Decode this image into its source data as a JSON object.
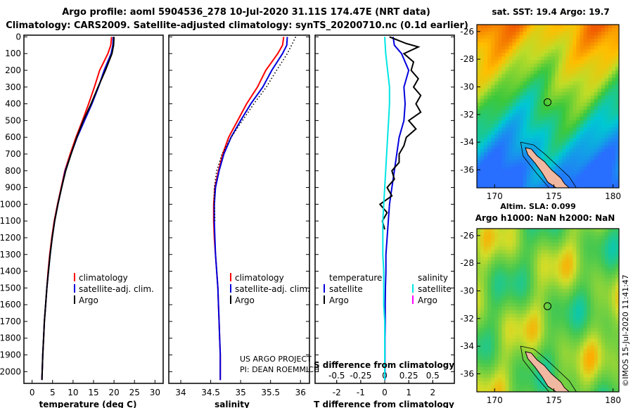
{
  "title": {
    "line1": "Argo profile: aoml 5904536_278 10-Jul-2020 31.11S 174.47E (NRT data)",
    "line2": "Climatology: CARS2009. Satellite-adjusted climatology: synTS_20200710.nc (0.1d earlier)"
  },
  "colors": {
    "climatology": "#ff0000",
    "satellite": "#0000dd",
    "argo": "#000000",
    "sat_salinity": "#00e5e5",
    "argo_salinity": "#ff00ff"
  },
  "chart_data": [
    {
      "type": "line",
      "name": "temperature",
      "xlabel": "temperature (deg C)",
      "ylabel": "",
      "xlim": [
        -2,
        32
      ],
      "ylim": [
        2070,
        -10
      ],
      "xticks": [
        0,
        5,
        10,
        15,
        20,
        25,
        30
      ],
      "yticks": [
        0,
        100,
        200,
        300,
        400,
        500,
        600,
        700,
        800,
        900,
        1000,
        1100,
        1200,
        1300,
        1400,
        1500,
        1600,
        1700,
        1800,
        1900,
        2000
      ],
      "legend": [
        "climatology",
        "satellite-adj. clim.",
        "Argo"
      ],
      "series": [
        {
          "name": "climatology",
          "points": [
            [
              19.4,
              0
            ],
            [
              19.2,
              50
            ],
            [
              18.5,
              100
            ],
            [
              16.5,
              200
            ],
            [
              15.2,
              300
            ],
            [
              13.8,
              400
            ],
            [
              12.3,
              500
            ],
            [
              10.7,
              600
            ],
            [
              9.3,
              700
            ],
            [
              8.0,
              800
            ],
            [
              7.1,
              900
            ],
            [
              6.2,
              1000
            ],
            [
              5.4,
              1100
            ],
            [
              4.8,
              1200
            ],
            [
              4.3,
              1300
            ],
            [
              3.9,
              1400
            ],
            [
              3.6,
              1500
            ],
            [
              3.3,
              1600
            ],
            [
              3.0,
              1700
            ],
            [
              2.8,
              1800
            ],
            [
              2.6,
              1900
            ],
            [
              2.4,
              2050
            ]
          ]
        },
        {
          "name": "satellite-adj. clim.",
          "points": [
            [
              19.8,
              0
            ],
            [
              19.7,
              50
            ],
            [
              19.3,
              100
            ],
            [
              17.6,
              200
            ],
            [
              16.2,
              300
            ],
            [
              14.6,
              400
            ],
            [
              12.8,
              500
            ],
            [
              11.0,
              600
            ],
            [
              9.5,
              700
            ],
            [
              8.1,
              800
            ],
            [
              7.2,
              900
            ],
            [
              6.3,
              1000
            ],
            [
              5.5,
              1100
            ],
            [
              4.9,
              1200
            ],
            [
              4.4,
              1300
            ],
            [
              4.0,
              1400
            ],
            [
              3.6,
              1500
            ],
            [
              3.3,
              1600
            ],
            [
              3.0,
              1700
            ],
            [
              2.8,
              1800
            ],
            [
              2.6,
              1900
            ],
            [
              2.4,
              2050
            ]
          ]
        },
        {
          "name": "Argo",
          "points": [
            [
              20.0,
              0
            ],
            [
              19.9,
              50
            ],
            [
              19.5,
              100
            ],
            [
              17.9,
              200
            ],
            [
              16.1,
              300
            ],
            [
              14.4,
              400
            ],
            [
              12.5,
              500
            ],
            [
              10.9,
              600
            ],
            [
              9.5,
              700
            ],
            [
              8.2,
              800
            ],
            [
              7.2,
              900
            ],
            [
              6.3,
              1000
            ],
            [
              5.5,
              1100
            ],
            [
              4.9,
              1200
            ],
            [
              4.4,
              1300
            ],
            [
              4.0,
              1400
            ],
            [
              3.6,
              1500
            ],
            [
              3.3,
              1600
            ],
            [
              3.0,
              1700
            ],
            [
              2.8,
              1800
            ],
            [
              2.6,
              1900
            ],
            [
              2.4,
              2050
            ]
          ]
        }
      ]
    },
    {
      "type": "line",
      "name": "salinity",
      "xlabel": "salinity",
      "xlim": [
        33.8,
        36.15
      ],
      "ylim": [
        2070,
        -10
      ],
      "xticks": [
        34,
        34.5,
        35,
        35.5,
        36
      ],
      "legend": [
        "climatology",
        "satellite-adj. clim.",
        "Argo"
      ],
      "series": [
        {
          "name": "climatology",
          "points": [
            [
              35.72,
              0
            ],
            [
              35.7,
              50
            ],
            [
              35.62,
              100
            ],
            [
              35.42,
              200
            ],
            [
              35.28,
              300
            ],
            [
              35.1,
              400
            ],
            [
              34.95,
              500
            ],
            [
              34.8,
              600
            ],
            [
              34.7,
              700
            ],
            [
              34.63,
              800
            ],
            [
              34.57,
              900
            ],
            [
              34.55,
              1000
            ],
            [
              34.55,
              1100
            ],
            [
              34.56,
              1200
            ],
            [
              34.58,
              1300
            ],
            [
              34.6,
              1400
            ],
            [
              34.62,
              1500
            ],
            [
              34.63,
              1600
            ],
            [
              34.64,
              1700
            ],
            [
              34.65,
              1800
            ],
            [
              34.66,
              1900
            ],
            [
              34.66,
              2050
            ]
          ]
        },
        {
          "name": "satellite-adj. clim.",
          "points": [
            [
              35.78,
              0
            ],
            [
              35.77,
              50
            ],
            [
              35.7,
              100
            ],
            [
              35.52,
              200
            ],
            [
              35.37,
              300
            ],
            [
              35.17,
              400
            ],
            [
              35.0,
              500
            ],
            [
              34.84,
              600
            ],
            [
              34.72,
              700
            ],
            [
              34.64,
              800
            ],
            [
              34.58,
              900
            ],
            [
              34.56,
              1000
            ],
            [
              34.56,
              1100
            ],
            [
              34.57,
              1200
            ],
            [
              34.58,
              1300
            ],
            [
              34.6,
              1400
            ],
            [
              34.62,
              1500
            ],
            [
              34.63,
              1600
            ],
            [
              34.64,
              1700
            ],
            [
              34.65,
              1800
            ],
            [
              34.66,
              1900
            ],
            [
              34.66,
              2050
            ]
          ]
        },
        {
          "name": "Argo",
          "points": [
            [
              35.92,
              0
            ],
            [
              35.85,
              50
            ],
            [
              35.78,
              100
            ],
            [
              35.6,
              200
            ],
            [
              35.43,
              300
            ],
            [
              35.22,
              400
            ],
            [
              35.03,
              500
            ],
            [
              34.84,
              600
            ],
            [
              34.69,
              700
            ],
            [
              34.6,
              800
            ],
            [
              34.56,
              900
            ],
            [
              34.56,
              1000
            ],
            [
              34.57,
              1100
            ]
          ]
        }
      ]
    },
    {
      "type": "line",
      "name": "difference",
      "xlabel": "T difference from climatology",
      "xlabel2": "S difference from climatology",
      "xlim": [
        -2.9,
        2.9
      ],
      "ylim": [
        2070,
        -10
      ],
      "xticks_T": [
        -2,
        -1,
        0,
        1,
        2
      ],
      "xticks_S": [
        "-0.5",
        "-0.25",
        "0",
        "0.25",
        "0.5"
      ],
      "legend_left": [
        "temperature",
        "satellite",
        "Argo"
      ],
      "legend_right": [
        "salinity",
        "satellite",
        "Argo"
      ],
      "series": [
        {
          "name": "satellite T",
          "points": [
            [
              0.35,
              0
            ],
            [
              0.4,
              50
            ],
            [
              0.7,
              100
            ],
            [
              1.0,
              200
            ],
            [
              0.8,
              300
            ],
            [
              0.85,
              400
            ],
            [
              0.8,
              500
            ],
            [
              0.6,
              600
            ],
            [
              0.5,
              700
            ],
            [
              0.4,
              800
            ],
            [
              0.3,
              900
            ],
            [
              0.2,
              1000
            ],
            [
              0.15,
              1100
            ],
            [
              0.1,
              1200
            ],
            [
              0.05,
              1300
            ],
            [
              0.05,
              1400
            ],
            [
              0.03,
              1500
            ],
            [
              0.02,
              1600
            ],
            [
              0.02,
              1700
            ],
            [
              0.01,
              1800
            ],
            [
              0.01,
              1900
            ],
            [
              0.01,
              2050
            ]
          ]
        },
        {
          "name": "Argo T",
          "points": [
            [
              0.2,
              0
            ],
            [
              0.9,
              40
            ],
            [
              1.4,
              60
            ],
            [
              0.8,
              100
            ],
            [
              1.2,
              150
            ],
            [
              1.1,
              200
            ],
            [
              1.4,
              250
            ],
            [
              1.2,
              300
            ],
            [
              1.5,
              350
            ],
            [
              1.3,
              400
            ],
            [
              1.5,
              450
            ],
            [
              1.0,
              500
            ],
            [
              1.3,
              550
            ],
            [
              0.9,
              600
            ],
            [
              0.8,
              650
            ],
            [
              0.6,
              700
            ],
            [
              0.6,
              750
            ],
            [
              0.3,
              800
            ],
            [
              0.4,
              850
            ],
            [
              0.1,
              900
            ],
            [
              0.3,
              950
            ],
            [
              -0.2,
              1000
            ],
            [
              0.1,
              1050
            ],
            [
              -0.1,
              1100
            ],
            [
              0.0,
              1150
            ]
          ]
        },
        {
          "name": "satellite S",
          "points": [
            [
              0.0,
              0
            ],
            [
              0.01,
              100
            ],
            [
              0.03,
              200
            ],
            [
              0.05,
              300
            ],
            [
              0.05,
              400
            ],
            [
              0.04,
              500
            ],
            [
              0.03,
              600
            ],
            [
              0.02,
              700
            ],
            [
              0.01,
              800
            ],
            [
              0.0,
              900
            ],
            [
              -0.01,
              1000
            ],
            [
              -0.02,
              1100
            ],
            [
              -0.02,
              1200
            ],
            [
              -0.02,
              1300
            ],
            [
              -0.01,
              1400
            ],
            [
              -0.01,
              1500
            ],
            [
              -0.01,
              1600
            ],
            [
              0.0,
              1700
            ],
            [
              0.0,
              1800
            ],
            [
              0.0,
              1900
            ],
            [
              0.0,
              2050
            ]
          ]
        }
      ]
    },
    {
      "type": "heatmap",
      "name": "sst_map",
      "title": "sat. SST: 19.4 Argo: 19.7",
      "xticks": [
        170,
        175,
        180
      ],
      "yticks": [
        -26,
        -28,
        -30,
        -32,
        -34,
        -36
      ],
      "xlim": [
        168.5,
        180.5
      ],
      "ylim": [
        -37.3,
        -25.5
      ],
      "marker": [
        174.47,
        -31.11
      ],
      "footer": "Altim. SLA: 0.099"
    },
    {
      "type": "heatmap",
      "name": "sla_map",
      "title": "Argo h1000: NaN h2000: NaN",
      "xticks": [
        170,
        175,
        180
      ],
      "yticks": [
        -26,
        -28,
        -30,
        -32,
        -34,
        -36
      ],
      "xlim": [
        168.5,
        180.5
      ],
      "ylim": [
        -37.3,
        -25.5
      ],
      "marker": [
        174.47,
        -31.11
      ]
    }
  ],
  "credit": {
    "line1": "US ARGO PROJECT",
    "line2": "PI: DEAN ROEMMICH"
  },
  "imos": "©IMOS 15-Jul-2020 11:41:47"
}
